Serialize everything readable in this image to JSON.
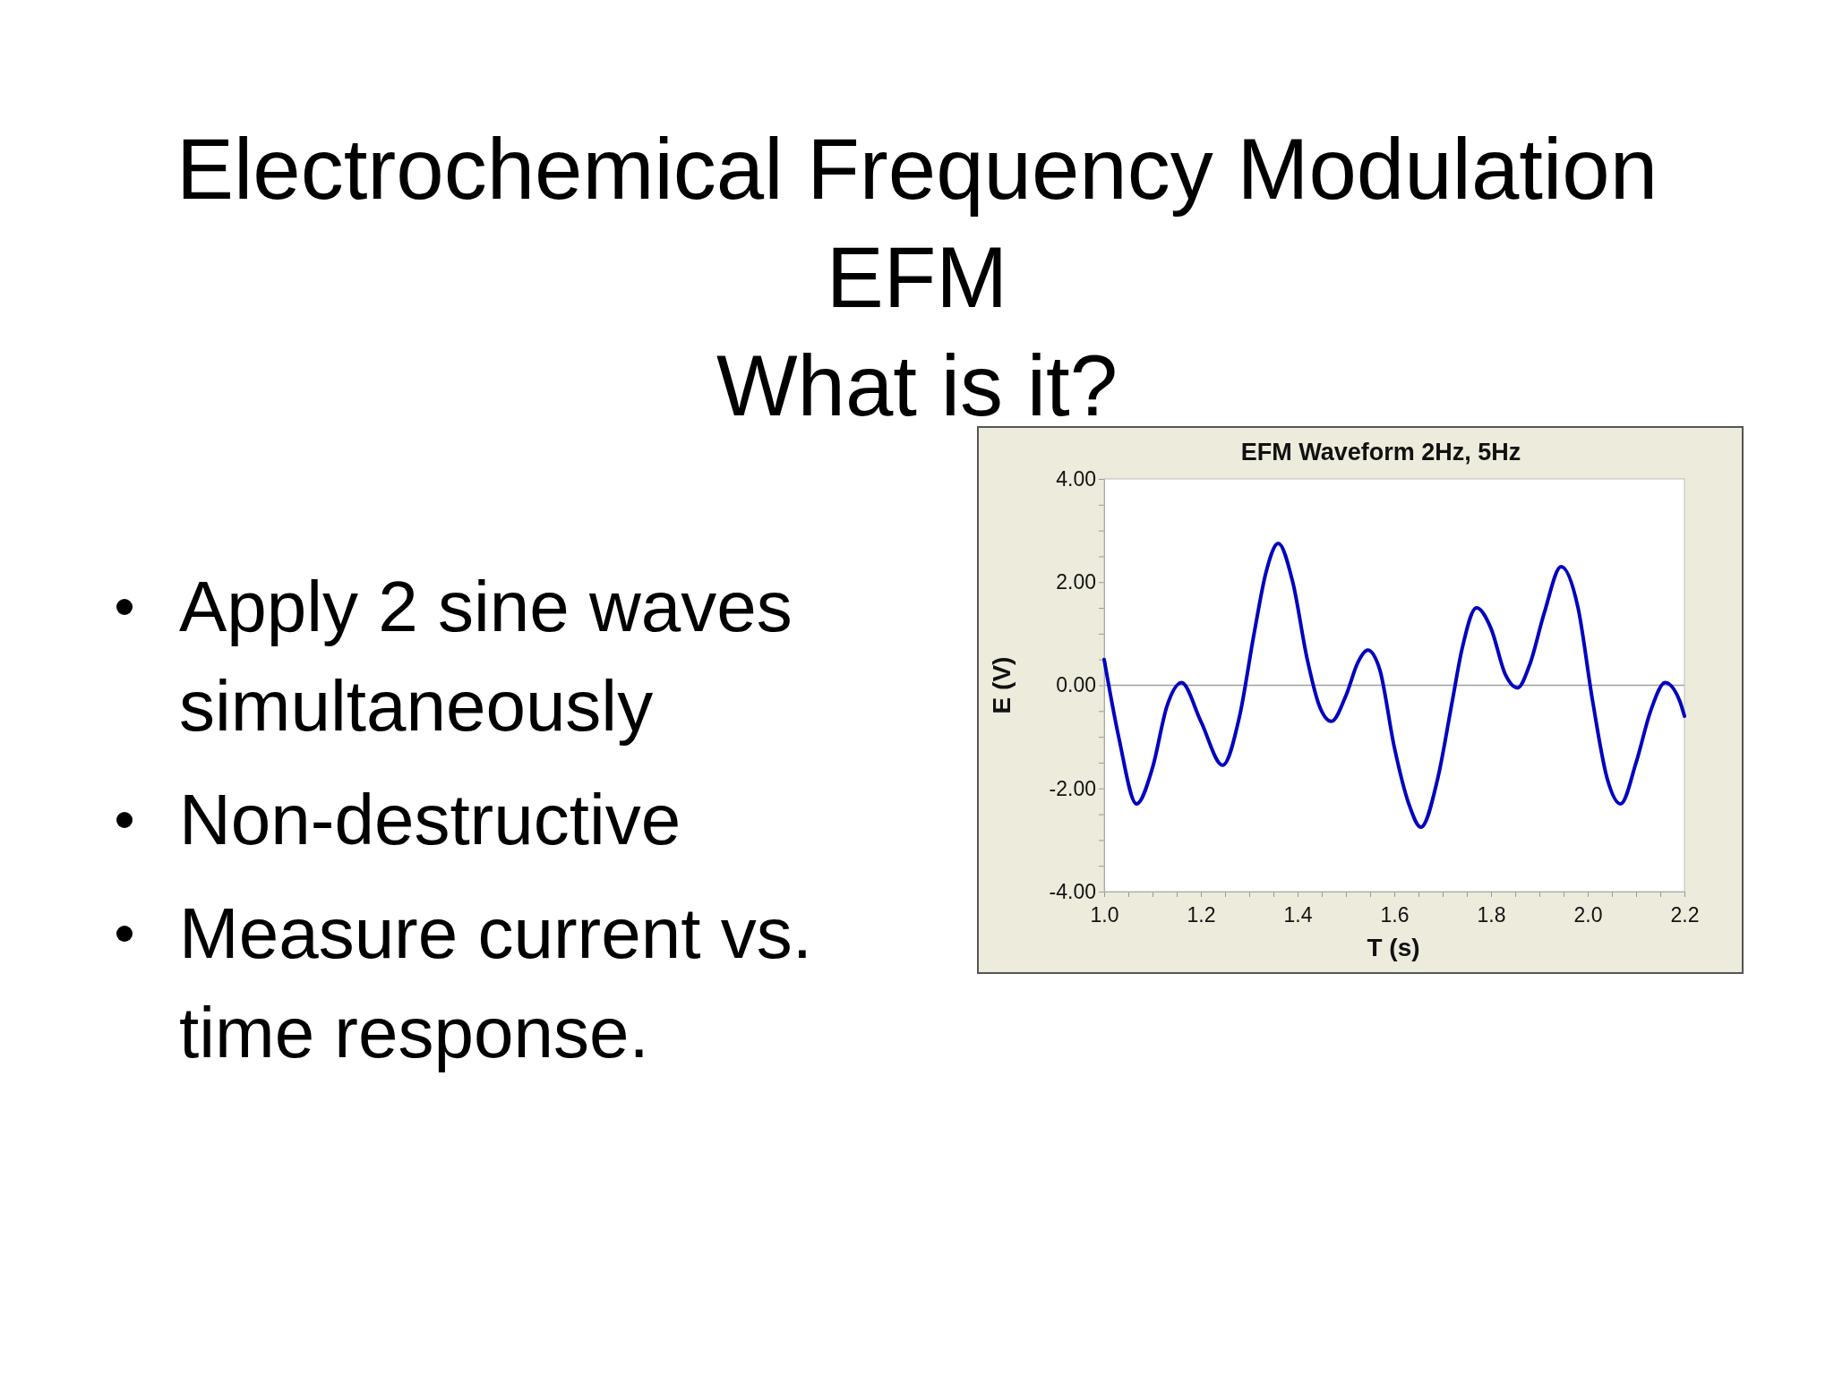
{
  "chart_data": {
    "type": "line",
    "title": "EFM  Waveform 2Hz, 5Hz",
    "xlabel": "T (s)",
    "ylabel": "E (V)",
    "annotations": [
      "Electrochemical Frequency Modulation",
      "EFM",
      "What is it?",
      "Apply 2 sine waves simultaneously",
      "Non-destructive",
      "Measure current vs. time response."
    ],
    "xlim": [
      1.0,
      2.2
    ],
    "ylim": [
      -4,
      4
    ],
    "xticks": [
      {
        "value": 1.0,
        "label": "1.0"
      },
      {
        "value": 1.05,
        "label": null
      },
      {
        "value": 1.1,
        "label": null
      },
      {
        "value": 1.15,
        "label": null
      },
      {
        "value": 1.2,
        "label": "1.2"
      },
      {
        "value": 1.25,
        "label": null
      },
      {
        "value": 1.3,
        "label": null
      },
      {
        "value": 1.35,
        "label": null
      },
      {
        "value": 1.4,
        "label": "1.4"
      },
      {
        "value": 1.45,
        "label": null
      },
      {
        "value": 1.5,
        "label": null
      },
      {
        "value": 1.55,
        "label": null
      },
      {
        "value": 1.6,
        "label": "1.6"
      },
      {
        "value": 1.65,
        "label": null
      },
      {
        "value": 1.7,
        "label": null
      },
      {
        "value": 1.75,
        "label": null
      },
      {
        "value": 1.8,
        "label": "1.8"
      },
      {
        "value": 1.85,
        "label": null
      },
      {
        "value": 1.9,
        "label": null
      },
      {
        "value": 1.95,
        "label": null
      },
      {
        "value": 2.0,
        "label": "2.0"
      },
      {
        "value": 2.05,
        "label": null
      },
      {
        "value": 2.1,
        "label": null
      },
      {
        "value": 2.15,
        "label": null
      },
      {
        "value": 2.2,
        "label": "2.2"
      }
    ],
    "yticks": [
      {
        "value": -4,
        "label": "-4.00"
      },
      {
        "value": -3.5,
        "label": null
      },
      {
        "value": -3,
        "label": null
      },
      {
        "value": -2.5,
        "label": null
      },
      {
        "value": -2,
        "label": "-2.00"
      },
      {
        "value": -1.5,
        "label": null
      },
      {
        "value": -1,
        "label": null
      },
      {
        "value": -0.5,
        "label": null
      },
      {
        "value": 0,
        "label": "0.00"
      },
      {
        "value": 0.5,
        "label": null
      },
      {
        "value": 1,
        "label": null
      },
      {
        "value": 1.5,
        "label": null
      },
      {
        "value": 2,
        "label": "2.00"
      },
      {
        "value": 2.5,
        "label": null
      },
      {
        "value": 3,
        "label": null
      },
      {
        "value": 3.5,
        "label": null
      },
      {
        "value": 4,
        "label": "4.00"
      }
    ],
    "ref_lines": [
      {
        "axis": "y",
        "value": 0,
        "color": "#a0a0a0"
      }
    ],
    "series": [
      {
        "color": "#0000c0",
        "x": [
          1.0,
          1.03,
          1.067,
          1.1,
          1.13,
          1.16,
          1.2,
          1.245,
          1.28,
          1.31,
          1.335,
          1.36,
          1.39,
          1.42,
          1.445,
          1.47,
          1.5,
          1.525,
          1.545,
          1.57,
          1.6,
          1.63,
          1.655,
          1.69,
          1.72,
          1.74,
          1.77,
          1.8,
          1.83,
          1.855,
          1.88,
          1.91,
          1.945,
          1.98,
          2.01,
          2.04,
          2.068,
          2.1,
          2.13,
          2.16,
          2.19,
          2.2
        ],
        "values": [
          0.5,
          -1.0,
          -2.3,
          -1.6,
          -0.4,
          0.05,
          -0.7,
          -1.55,
          -0.6,
          1.0,
          2.2,
          2.75,
          2.0,
          0.5,
          -0.4,
          -0.7,
          -0.2,
          0.45,
          0.68,
          0.3,
          -1.2,
          -2.3,
          -2.75,
          -1.8,
          -0.3,
          0.7,
          1.5,
          1.1,
          0.2,
          -0.05,
          0.4,
          1.4,
          2.3,
          1.5,
          -0.3,
          -1.8,
          -2.3,
          -1.5,
          -0.5,
          0.05,
          -0.3,
          -0.6
        ]
      }
    ]
  }
}
